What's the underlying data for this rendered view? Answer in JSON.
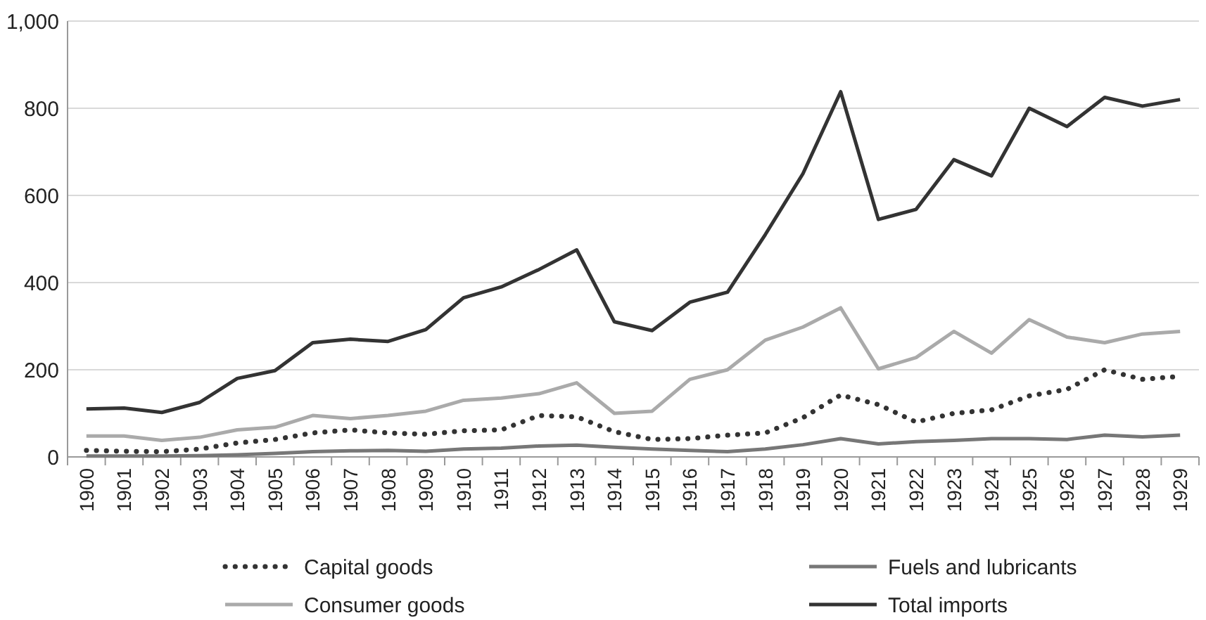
{
  "chart_data": {
    "type": "line",
    "categories": [
      "1900",
      "1901",
      "1902",
      "1903",
      "1904",
      "1905",
      "1906",
      "1907",
      "1908",
      "1909",
      "1910",
      "1911",
      "1912",
      "1913",
      "1914",
      "1915",
      "1916",
      "1917",
      "1918",
      "1919",
      "1920",
      "1921",
      "1922",
      "1923",
      "1924",
      "1925",
      "1926",
      "1927",
      "1928",
      "1929"
    ],
    "series": [
      {
        "name": "Capital goods",
        "color": "#333333",
        "line_style": "dotted",
        "values": [
          15,
          13,
          12,
          18,
          32,
          40,
          55,
          62,
          55,
          52,
          60,
          62,
          95,
          92,
          58,
          40,
          42,
          50,
          55,
          90,
          142,
          120,
          80,
          100,
          108,
          140,
          155,
          200,
          178,
          185
        ]
      },
      {
        "name": "Fuels and lubricants",
        "color": "#777777",
        "line_style": "solid",
        "values": [
          2,
          2,
          2,
          3,
          5,
          8,
          12,
          14,
          15,
          13,
          18,
          20,
          25,
          27,
          22,
          18,
          15,
          12,
          18,
          28,
          42,
          30,
          35,
          38,
          42,
          42,
          40,
          50,
          46,
          50
        ]
      },
      {
        "name": "Consumer goods",
        "color": "#aaaaaa",
        "line_style": "solid",
        "values": [
          48,
          48,
          38,
          45,
          62,
          68,
          95,
          88,
          95,
          105,
          130,
          135,
          145,
          170,
          100,
          105,
          178,
          200,
          268,
          298,
          342,
          202,
          228,
          288,
          238,
          315,
          275,
          262,
          282,
          288
        ]
      },
      {
        "name": "Total imports",
        "color": "#333333",
        "line_style": "solid",
        "values": [
          110,
          112,
          102,
          125,
          180,
          198,
          262,
          270,
          265,
          292,
          365,
          390,
          430,
          475,
          310,
          290,
          355,
          378,
          510,
          650,
          838,
          545,
          568,
          682,
          645,
          800,
          758,
          825,
          805,
          820
        ]
      }
    ],
    "ylim": [
      0,
      1000
    ],
    "yticks": [
      {
        "value": 0,
        "label": "0"
      },
      {
        "value": 200,
        "label": "200"
      },
      {
        "value": 400,
        "label": "400"
      },
      {
        "value": 600,
        "label": "600"
      },
      {
        "value": 800,
        "label": "800"
      },
      {
        "value": 1000,
        "label": "1,000"
      }
    ],
    "grid": "y",
    "legend": "bottom"
  }
}
